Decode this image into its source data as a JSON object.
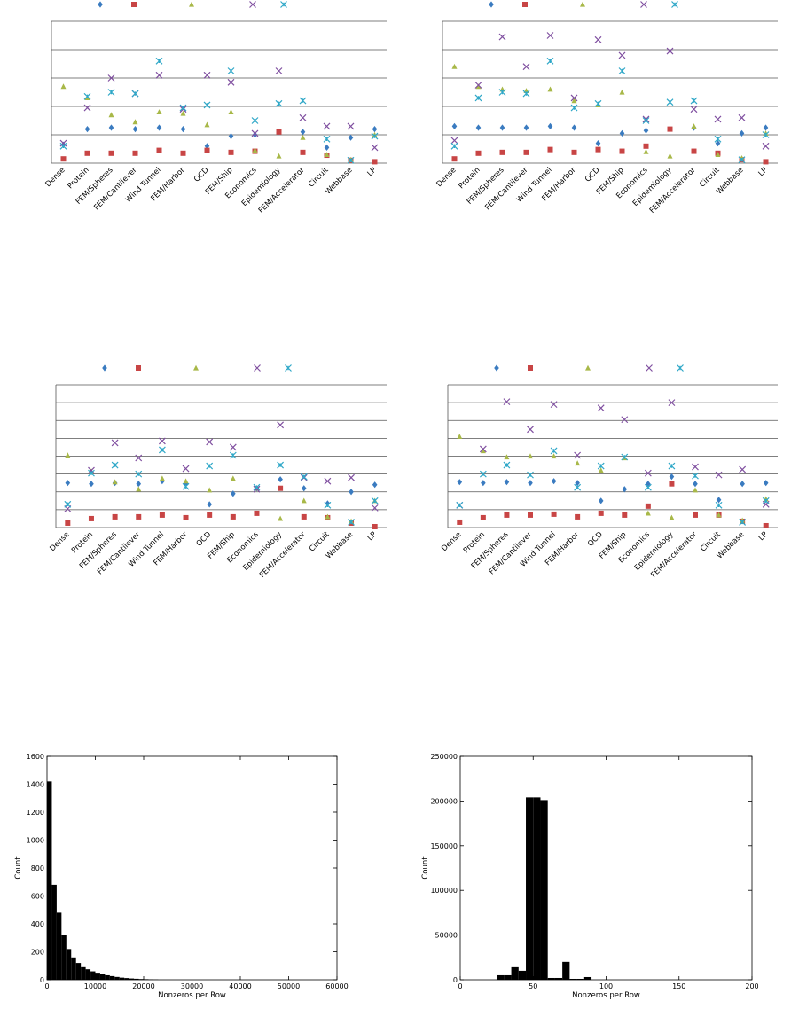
{
  "chart_data": [
    {
      "type": "scatter",
      "panel": "top-left",
      "categories": [
        "Dense",
        "Protein",
        "FEM/Spheres",
        "FEM/Cantilever",
        "Wind Tunnel",
        "FEM/Harbor",
        "QCD",
        "FEM/Ship",
        "Economics",
        "Epidemiology",
        "FEM/Accelerator",
        "Circuit",
        "Webbase",
        "LP"
      ],
      "ylim": [
        0,
        5
      ],
      "grid": true,
      "legend": "top",
      "series": [
        {
          "marker": "diamond",
          "color": "#3a7bc0",
          "values": [
            0.65,
            1.2,
            1.25,
            1.2,
            1.25,
            1.2,
            0.6,
            0.95,
            1.0,
            1.1,
            1.1,
            0.55,
            0.9,
            1.2
          ]
        },
        {
          "marker": "square",
          "color": "#c84545",
          "values": [
            0.15,
            0.35,
            0.35,
            0.35,
            0.45,
            0.35,
            0.45,
            0.38,
            0.42,
            1.1,
            0.38,
            0.28,
            0.1,
            0.05
          ]
        },
        {
          "marker": "triangle",
          "color": "#a8b848",
          "values": [
            2.7,
            2.3,
            1.7,
            1.45,
            1.8,
            1.75,
            1.35,
            1.8,
            0.45,
            0.25,
            0.9,
            0.3,
            0.12,
            1.0
          ]
        },
        {
          "marker": "x",
          "color": "#8050a0",
          "values": [
            0.7,
            1.95,
            3.0,
            2.45,
            3.1,
            1.9,
            3.1,
            2.85,
            1.05,
            3.25,
            1.6,
            1.3,
            1.3,
            0.55
          ]
        },
        {
          "marker": "star",
          "color": "#30a8c8",
          "values": [
            0.6,
            2.35,
            2.5,
            2.45,
            3.6,
            1.95,
            2.05,
            3.25,
            1.5,
            2.1,
            2.2,
            0.85,
            0.1,
            0.95
          ]
        }
      ]
    },
    {
      "type": "scatter",
      "panel": "top-right",
      "categories": [
        "Dense",
        "Protein",
        "FEM/Spheres",
        "FEM/Cantilever",
        "Wind Tunnel",
        "FEM/Harbor",
        "QCD",
        "FEM/Ship",
        "Economics",
        "Epidemiology",
        "FEM/Accelerator",
        "Circuit",
        "Webbase",
        "LP"
      ],
      "ylim": [
        0,
        5
      ],
      "grid": true,
      "legend": "top",
      "series": [
        {
          "marker": "diamond",
          "color": "#3a7bc0",
          "values": [
            1.3,
            1.25,
            1.25,
            1.25,
            1.3,
            1.25,
            0.7,
            1.05,
            1.15,
            1.2,
            1.25,
            0.7,
            1.05,
            1.25
          ]
        },
        {
          "marker": "square",
          "color": "#c84545",
          "values": [
            0.15,
            0.35,
            0.38,
            0.38,
            0.48,
            0.38,
            0.48,
            0.42,
            0.6,
            1.2,
            0.42,
            0.35,
            0.12,
            0.05
          ]
        },
        {
          "marker": "triangle",
          "color": "#a8b848",
          "values": [
            3.4,
            2.7,
            2.6,
            2.55,
            2.6,
            2.2,
            2.05,
            2.5,
            0.4,
            0.25,
            1.3,
            0.3,
            0.18,
            1.05
          ]
        },
        {
          "marker": "x",
          "color": "#8050a0",
          "values": [
            0.8,
            2.75,
            4.45,
            3.4,
            4.5,
            2.3,
            4.35,
            3.8,
            1.55,
            3.95,
            1.9,
            1.55,
            1.6,
            0.6
          ]
        },
        {
          "marker": "star",
          "color": "#30a8c8",
          "values": [
            0.6,
            2.3,
            2.5,
            2.45,
            3.6,
            1.95,
            2.1,
            3.25,
            1.5,
            2.15,
            2.2,
            0.85,
            0.12,
            1.0
          ]
        }
      ]
    },
    {
      "type": "scatter",
      "panel": "middle-left",
      "categories": [
        "Dense",
        "Protein",
        "FEM/Spheres",
        "FEM/Cantilever",
        "Wind Tunnel",
        "FEM/Harbor",
        "QCD",
        "FEM/Ship",
        "Economics",
        "Epidemiology",
        "FEM/Accelerator",
        "Circuit",
        "Webbase",
        "LP"
      ],
      "ylim": [
        0,
        8
      ],
      "grid": true,
      "legend": "top",
      "series": [
        {
          "marker": "diamond",
          "color": "#3a7bc0",
          "values": [
            2.5,
            2.45,
            2.5,
            2.45,
            2.6,
            2.45,
            1.3,
            1.9,
            2.2,
            2.7,
            2.2,
            1.35,
            2.0,
            2.4
          ]
        },
        {
          "marker": "square",
          "color": "#c84545",
          "values": [
            0.25,
            0.5,
            0.6,
            0.6,
            0.7,
            0.55,
            0.7,
            0.6,
            0.8,
            2.2,
            0.6,
            0.55,
            0.25,
            0.05
          ]
        },
        {
          "marker": "triangle",
          "color": "#a8b848",
          "values": [
            4.05,
            3.15,
            2.55,
            2.15,
            2.75,
            2.6,
            2.1,
            2.75,
            2.2,
            0.5,
            1.5,
            0.6,
            0.35,
            1.5
          ]
        },
        {
          "marker": "x",
          "color": "#8050a0",
          "values": [
            1.05,
            3.2,
            4.75,
            3.9,
            4.85,
            3.3,
            4.8,
            4.5,
            2.15,
            5.75,
            2.8,
            2.6,
            2.8,
            1.1
          ]
        },
        {
          "marker": "star",
          "color": "#30a8c8",
          "values": [
            1.3,
            3.05,
            3.5,
            3.0,
            4.35,
            2.3,
            3.45,
            4.05,
            2.25,
            3.5,
            2.85,
            1.25,
            0.3,
            1.5
          ]
        }
      ]
    },
    {
      "type": "scatter",
      "panel": "middle-right",
      "categories": [
        "Dense",
        "Protein",
        "FEM/Spheres",
        "FEM/Cantilever",
        "Wind Tunnel",
        "FEM/Harbor",
        "QCD",
        "FEM/Ship",
        "Economics",
        "Epidemiology",
        "FEM/Accelerator",
        "Circuit",
        "Webbase",
        "LP"
      ],
      "ylim": [
        0,
        8
      ],
      "grid": true,
      "legend": "top",
      "series": [
        {
          "marker": "diamond",
          "color": "#3a7bc0",
          "values": [
            2.55,
            2.5,
            2.55,
            2.5,
            2.6,
            2.5,
            1.5,
            2.15,
            2.45,
            2.85,
            2.45,
            1.55,
            2.45,
            2.5
          ]
        },
        {
          "marker": "square",
          "color": "#c84545",
          "values": [
            0.3,
            0.55,
            0.7,
            0.7,
            0.75,
            0.6,
            0.8,
            0.7,
            1.2,
            2.45,
            0.7,
            0.7,
            0.35,
            0.1
          ]
        },
        {
          "marker": "triangle",
          "color": "#a8b848",
          "values": [
            5.1,
            4.3,
            3.95,
            4.0,
            4.0,
            3.6,
            3.2,
            3.9,
            0.8,
            0.55,
            2.1,
            0.7,
            0.4,
            1.6
          ]
        },
        {
          "marker": "x",
          "color": "#8050a0",
          "values": [
            1.25,
            4.4,
            7.05,
            5.5,
            6.9,
            4.05,
            6.7,
            6.05,
            3.05,
            7.0,
            3.4,
            2.95,
            3.25,
            1.3
          ]
        },
        {
          "marker": "star",
          "color": "#30a8c8",
          "values": [
            1.25,
            3.0,
            3.5,
            2.95,
            4.3,
            2.25,
            3.45,
            3.95,
            2.25,
            3.45,
            2.9,
            1.25,
            0.3,
            1.5
          ]
        }
      ]
    },
    {
      "type": "bar",
      "panel": "bottom-left",
      "xlabel": "Nonzeros per Row",
      "ylabel": "Count",
      "xlim": [
        0,
        60000
      ],
      "ylim": [
        0,
        1600
      ],
      "xticks": [
        "0",
        "10000",
        "20000",
        "30000",
        "40000",
        "50000",
        "60000"
      ],
      "yticks": [
        "0",
        "200",
        "400",
        "600",
        "800",
        "1000",
        "1200",
        "1400",
        "1600"
      ],
      "bin_width": 1000,
      "x": [
        0,
        1000,
        2000,
        3000,
        4000,
        5000,
        6000,
        7000,
        8000,
        9000,
        10000,
        11000,
        12000,
        13000,
        14000,
        15000,
        16000,
        17000,
        18000,
        19000,
        20000,
        21000,
        22000
      ],
      "values": [
        1420,
        680,
        480,
        320,
        220,
        160,
        120,
        90,
        75,
        60,
        50,
        40,
        32,
        26,
        20,
        15,
        12,
        9,
        7,
        5,
        4,
        3,
        2
      ]
    },
    {
      "type": "bar",
      "panel": "bottom-right",
      "xlabel": "Nonzeros per Row",
      "ylabel": "Count",
      "xlim": [
        0,
        200
      ],
      "ylim": [
        0,
        250000
      ],
      "xticks": [
        "0",
        "50",
        "100",
        "150",
        "200"
      ],
      "yticks": [
        "0",
        "50000",
        "100000",
        "150000",
        "200000",
        "250000"
      ],
      "bin_width": 5,
      "x": [
        20,
        25,
        30,
        35,
        40,
        45,
        50,
        55,
        60,
        65,
        70,
        75,
        80,
        85,
        90
      ],
      "values": [
        0,
        5000,
        5000,
        14000,
        10000,
        204000,
        204000,
        201000,
        2000,
        2000,
        20000,
        1000,
        1000,
        3000,
        0
      ]
    }
  ]
}
